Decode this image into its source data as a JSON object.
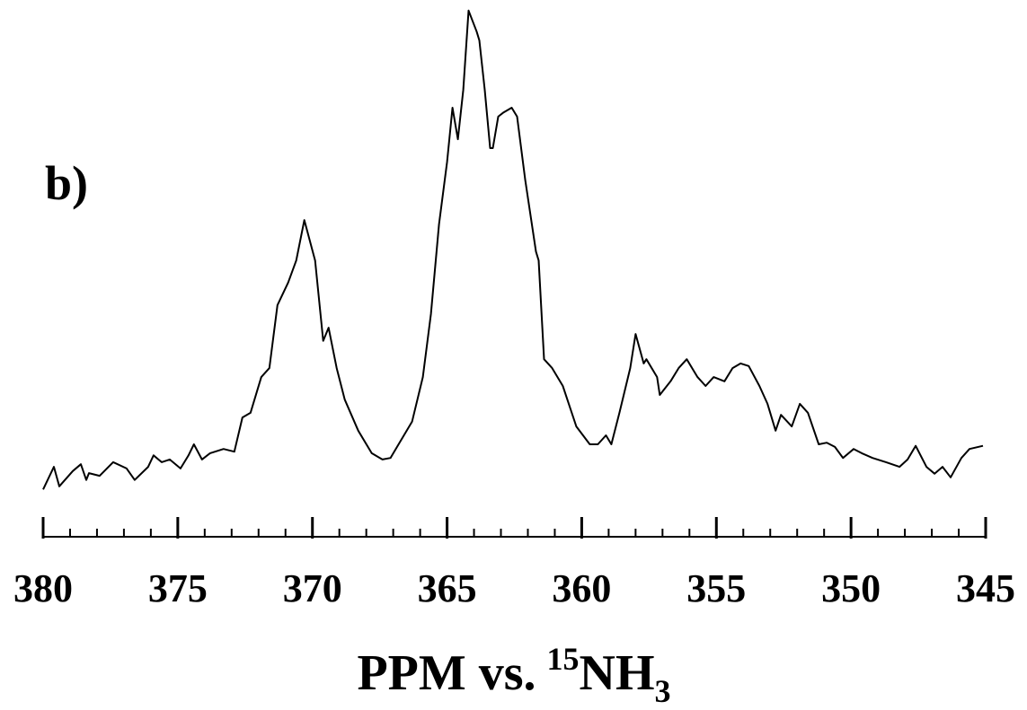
{
  "chart_data": {
    "type": "line",
    "annotation": "b)",
    "xlabel": [
      "PPM vs.",
      "15",
      "NH",
      "3"
    ],
    "xlim": [
      380,
      345
    ],
    "xticks": [
      380,
      375,
      370,
      365,
      360,
      355,
      350,
      345
    ],
    "xticks_minor": [
      379,
      378,
      377,
      376,
      374,
      373,
      372,
      371,
      369,
      368,
      367,
      366,
      364,
      363,
      362,
      361,
      359,
      358,
      357,
      356,
      354,
      353,
      352,
      351,
      349,
      348,
      347,
      346
    ],
    "ylim": [
      0,
      100
    ],
    "color": "#000000",
    "x": [
      380.0,
      379.6,
      379.4,
      378.9,
      378.6,
      378.4,
      378.3,
      377.9,
      377.4,
      376.9,
      376.6,
      376.1,
      375.9,
      375.6,
      375.3,
      374.9,
      374.6,
      374.4,
      374.1,
      373.8,
      373.3,
      372.9,
      372.6,
      372.3,
      371.9,
      371.6,
      371.3,
      370.9,
      370.6,
      370.3,
      369.9,
      369.6,
      369.4,
      369.1,
      368.8,
      368.3,
      367.8,
      367.4,
      367.1,
      366.8,
      366.3,
      365.9,
      365.6,
      365.3,
      365.0,
      364.8,
      364.6,
      364.4,
      364.2,
      363.9,
      363.8,
      363.6,
      363.4,
      363.3,
      363.1,
      362.9,
      362.6,
      362.4,
      362.1,
      361.7,
      361.6,
      361.4,
      361.1,
      360.7,
      360.2,
      359.7,
      359.4,
      359.1,
      358.9,
      358.6,
      358.2,
      358.0,
      357.7,
      357.6,
      357.2,
      357.1,
      356.7,
      356.4,
      356.1,
      355.7,
      355.4,
      355.1,
      354.7,
      354.4,
      354.1,
      353.8,
      353.4,
      353.1,
      352.8,
      352.6,
      352.2,
      351.9,
      351.6,
      351.2,
      350.9,
      350.6,
      350.3,
      349.9,
      349.6,
      349.2,
      348.7,
      348.2,
      347.9,
      347.6,
      347.2,
      346.9,
      346.6,
      346.3,
      345.9,
      345.6,
      345.1
    ],
    "values": [
      8.5,
      12.8,
      9.1,
      12.0,
      13.3,
      10.3,
      11.6,
      11.1,
      13.7,
      12.5,
      10.3,
      12.8,
      15.0,
      13.7,
      14.2,
      12.5,
      15.0,
      17.1,
      14.2,
      15.4,
      16.2,
      15.7,
      22.2,
      23.1,
      29.9,
      31.6,
      43.6,
      47.9,
      52.1,
      59.8,
      52.1,
      36.8,
      39.3,
      31.6,
      25.6,
      19.7,
      15.4,
      14.2,
      14.5,
      17.1,
      21.4,
      29.9,
      41.9,
      59.0,
      70.9,
      81.2,
      75.2,
      84.6,
      99.7,
      95.7,
      94.0,
      84.6,
      73.5,
      73.5,
      79.5,
      80.3,
      81.2,
      79.5,
      67.5,
      53.8,
      52.1,
      33.3,
      31.6,
      28.2,
      20.5,
      17.1,
      17.1,
      18.8,
      17.1,
      23.1,
      31.6,
      38.1,
      32.5,
      33.3,
      29.9,
      26.5,
      29.1,
      31.6,
      33.3,
      29.9,
      28.2,
      29.9,
      29.1,
      31.6,
      32.5,
      32.0,
      28.2,
      24.8,
      19.7,
      22.7,
      20.5,
      24.8,
      23.1,
      17.1,
      17.4,
      16.6,
      14.5,
      16.2,
      15.4,
      14.5,
      13.7,
      12.8,
      14.2,
      16.8,
      12.8,
      11.5,
      12.8,
      10.8,
      14.5,
      16.2,
      16.8
    ]
  }
}
